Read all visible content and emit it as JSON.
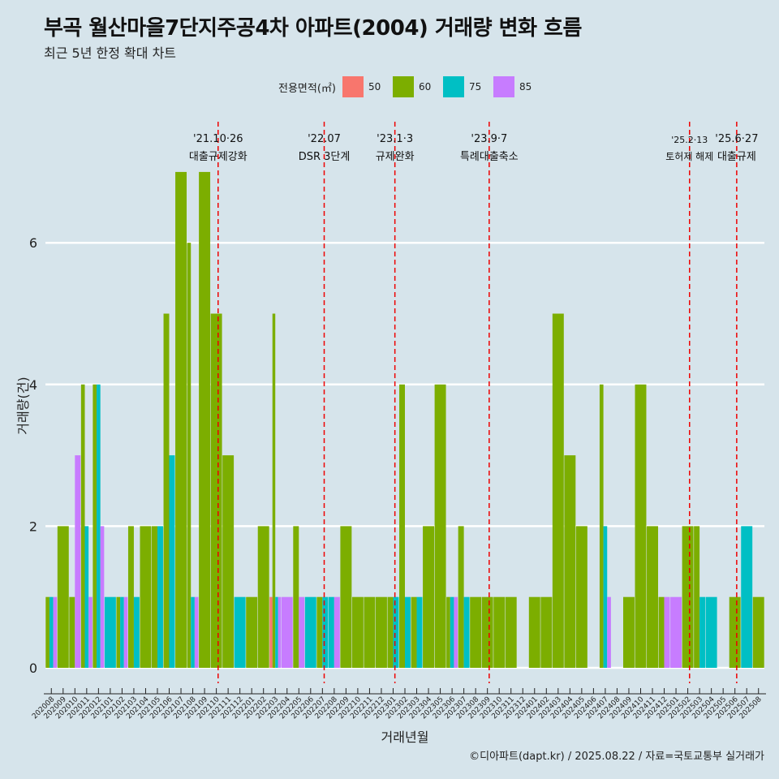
{
  "title": "부곡 월산마을7단지주공4차 아파트(2004) 거래량 변화 흐름",
  "subtitle": "최근 5년 한정 확대 차트",
  "caption": "©디아파트(dapt.kr) / 2025.08.22 / 자료=국토교통부 실거래가",
  "legend": {
    "title": "전용면적(㎡)",
    "items": [
      {
        "label": "50",
        "color": "#F8766D"
      },
      {
        "label": "60",
        "color": "#7CAE00"
      },
      {
        "label": "75",
        "color": "#00BFC4"
      },
      {
        "label": "85",
        "color": "#C77CFF"
      }
    ]
  },
  "chart_data": {
    "type": "bar",
    "xlabel": "거래년월",
    "ylabel": "거래량(건)",
    "ylim": [
      0,
      7
    ],
    "yticks": [
      0,
      2,
      4,
      6
    ],
    "legend_position": "top",
    "grid": true,
    "categories": [
      "202008",
      "202009",
      "202010",
      "202011",
      "202012",
      "202101",
      "202102",
      "202103",
      "202104",
      "202105",
      "202106",
      "202107",
      "202108",
      "202109",
      "202110",
      "202111",
      "202112",
      "202201",
      "202202",
      "202203",
      "202204",
      "202205",
      "202206",
      "202207",
      "202208",
      "202209",
      "202210",
      "202211",
      "202212",
      "202301",
      "202302",
      "202303",
      "202304",
      "202305",
      "202306",
      "202307",
      "202308",
      "202309",
      "202310",
      "202311",
      "202312",
      "202401",
      "202402",
      "202403",
      "202404",
      "202405",
      "202406",
      "202407",
      "202408",
      "202409",
      "202410",
      "202411",
      "202412",
      "202501",
      "202502",
      "202503",
      "202504",
      "202505",
      "202506",
      "202507",
      "202508"
    ],
    "bars": [
      {
        "month": "202008",
        "size": "60",
        "value": 1
      },
      {
        "month": "202008",
        "size": "75",
        "value": 1
      },
      {
        "month": "202008",
        "size": "85",
        "value": 1
      },
      {
        "month": "202009",
        "size": "60",
        "value": 2
      },
      {
        "month": "202010",
        "size": "60",
        "value": 1
      },
      {
        "month": "202010",
        "size": "85",
        "value": 3
      },
      {
        "month": "202011",
        "size": "60",
        "value": 4
      },
      {
        "month": "202011",
        "size": "75",
        "value": 2
      },
      {
        "month": "202011",
        "size": "85",
        "value": 1
      },
      {
        "month": "202012",
        "size": "60",
        "value": 4
      },
      {
        "month": "202012",
        "size": "75",
        "value": 4
      },
      {
        "month": "202012",
        "size": "85",
        "value": 2
      },
      {
        "month": "202101",
        "size": "75",
        "value": 1
      },
      {
        "month": "202102",
        "size": "60",
        "value": 1
      },
      {
        "month": "202102",
        "size": "75",
        "value": 1
      },
      {
        "month": "202102",
        "size": "85",
        "value": 1
      },
      {
        "month": "202103",
        "size": "60",
        "value": 2
      },
      {
        "month": "202103",
        "size": "75",
        "value": 1
      },
      {
        "month": "202104",
        "size": "60",
        "value": 2
      },
      {
        "month": "202105",
        "size": "60",
        "value": 2
      },
      {
        "month": "202105",
        "size": "75",
        "value": 2
      },
      {
        "month": "202106",
        "size": "60",
        "value": 5
      },
      {
        "month": "202106",
        "size": "75",
        "value": 3
      },
      {
        "month": "202107",
        "size": "60",
        "value": 7
      },
      {
        "month": "202108",
        "size": "60",
        "value": 6
      },
      {
        "month": "202108",
        "size": "75",
        "value": 1
      },
      {
        "month": "202108",
        "size": "85",
        "value": 1
      },
      {
        "month": "202109",
        "size": "60",
        "value": 7
      },
      {
        "month": "202110",
        "size": "60",
        "value": 5
      },
      {
        "month": "202111",
        "size": "60",
        "value": 3
      },
      {
        "month": "202112",
        "size": "75",
        "value": 1
      },
      {
        "month": "202201",
        "size": "60",
        "value": 1
      },
      {
        "month": "202202",
        "size": "60",
        "value": 2
      },
      {
        "month": "202203",
        "size": "50",
        "value": 1
      },
      {
        "month": "202203",
        "size": "60",
        "value": 5
      },
      {
        "month": "202203",
        "size": "75",
        "value": 1
      },
      {
        "month": "202203",
        "size": "85",
        "value": 1
      },
      {
        "month": "202204",
        "size": "85",
        "value": 1
      },
      {
        "month": "202205",
        "size": "60",
        "value": 2
      },
      {
        "month": "202205",
        "size": "85",
        "value": 1
      },
      {
        "month": "202206",
        "size": "75",
        "value": 1
      },
      {
        "month": "202207",
        "size": "60",
        "value": 1
      },
      {
        "month": "202207",
        "size": "75",
        "value": 1
      },
      {
        "month": "202208",
        "size": "75",
        "value": 1
      },
      {
        "month": "202208",
        "size": "85",
        "value": 1
      },
      {
        "month": "202209",
        "size": "60",
        "value": 2
      },
      {
        "month": "202210",
        "size": "60",
        "value": 1
      },
      {
        "month": "202211",
        "size": "60",
        "value": 1
      },
      {
        "month": "202212",
        "size": "60",
        "value": 1
      },
      {
        "month": "202301",
        "size": "60",
        "value": 1
      },
      {
        "month": "202301",
        "size": "75",
        "value": 1
      },
      {
        "month": "202302",
        "size": "60",
        "value": 4
      },
      {
        "month": "202302",
        "size": "75",
        "value": 1
      },
      {
        "month": "202303",
        "size": "60",
        "value": 1
      },
      {
        "month": "202303",
        "size": "75",
        "value": 1
      },
      {
        "month": "202304",
        "size": "60",
        "value": 2
      },
      {
        "month": "202305",
        "size": "60",
        "value": 4
      },
      {
        "month": "202306",
        "size": "60",
        "value": 1
      },
      {
        "month": "202306",
        "size": "75",
        "value": 1
      },
      {
        "month": "202306",
        "size": "85",
        "value": 1
      },
      {
        "month": "202307",
        "size": "60",
        "value": 2
      },
      {
        "month": "202307",
        "size": "75",
        "value": 1
      },
      {
        "month": "202308",
        "size": "60",
        "value": 1
      },
      {
        "month": "202309",
        "size": "60",
        "value": 1
      },
      {
        "month": "202310",
        "size": "60",
        "value": 1
      },
      {
        "month": "202311",
        "size": "60",
        "value": 1
      },
      {
        "month": "202401",
        "size": "60",
        "value": 1
      },
      {
        "month": "202402",
        "size": "60",
        "value": 1
      },
      {
        "month": "202403",
        "size": "60",
        "value": 5
      },
      {
        "month": "202404",
        "size": "60",
        "value": 3
      },
      {
        "month": "202405",
        "size": "60",
        "value": 2
      },
      {
        "month": "202407",
        "size": "60",
        "value": 4
      },
      {
        "month": "202407",
        "size": "75",
        "value": 2
      },
      {
        "month": "202407",
        "size": "85",
        "value": 1
      },
      {
        "month": "202409",
        "size": "60",
        "value": 1
      },
      {
        "month": "202410",
        "size": "60",
        "value": 4
      },
      {
        "month": "202411",
        "size": "60",
        "value": 2
      },
      {
        "month": "202412",
        "size": "60",
        "value": 1
      },
      {
        "month": "202412",
        "size": "85",
        "value": 1
      },
      {
        "month": "202501",
        "size": "85",
        "value": 1
      },
      {
        "month": "202502",
        "size": "60",
        "value": 2
      },
      {
        "month": "202503",
        "size": "60",
        "value": 2
      },
      {
        "month": "202503",
        "size": "75",
        "value": 1
      },
      {
        "month": "202504",
        "size": "75",
        "value": 1
      },
      {
        "month": "202506",
        "size": "60",
        "value": 1
      },
      {
        "month": "202507",
        "size": "75",
        "value": 2
      },
      {
        "month": "202508",
        "size": "60",
        "value": 1
      }
    ],
    "annotations": [
      {
        "month": "202110",
        "date": "'21.10·26",
        "label": "대출규제강화"
      },
      {
        "month": "202207",
        "date": "'22.07",
        "label": "DSR 3단계"
      },
      {
        "month": "202301",
        "date": "'23.1·3",
        "label": "규제완화"
      },
      {
        "month": "202309",
        "date": "'23.9·7",
        "label": "특례대출축소"
      },
      {
        "month": "202502",
        "date": "'25.2·13",
        "label": "토허제 해제"
      },
      {
        "month": "202506",
        "date": "'25.6·27",
        "label": "대출규제"
      }
    ]
  }
}
